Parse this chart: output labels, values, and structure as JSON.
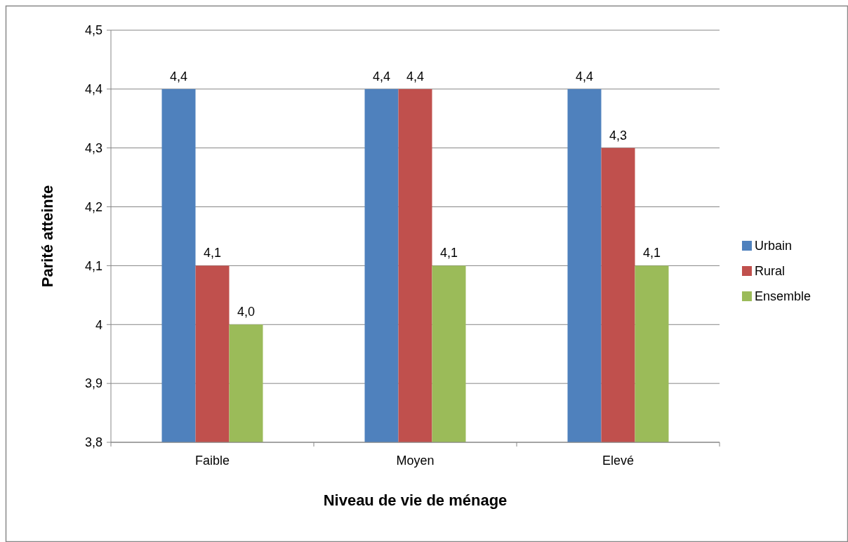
{
  "chart_data": {
    "type": "bar",
    "xlabel": "Niveau de vie de ménage",
    "ylabel": "Parité atteinte",
    "categories": [
      "Faible",
      "Moyen",
      "Elevé"
    ],
    "series": [
      {
        "name": "Urbain",
        "color": "#4f81bd",
        "values": [
          4.4,
          4.4,
          4.4
        ],
        "value_labels": [
          "4,4",
          "4,4",
          "4,4"
        ]
      },
      {
        "name": "Rural",
        "color": "#c0504d",
        "values": [
          4.1,
          4.4,
          4.3
        ],
        "value_labels": [
          "4,1",
          "4,4",
          "4,3"
        ]
      },
      {
        "name": "Ensemble",
        "color": "#9bbb59",
        "values": [
          4.0,
          4.1,
          4.1
        ],
        "value_labels": [
          "4,0",
          "4,1",
          "4,1"
        ]
      }
    ],
    "ylim": [
      3.8,
      4.5
    ],
    "yticks": [
      {
        "value": 3.8,
        "label": "3,8"
      },
      {
        "value": 3.9,
        "label": "3,9"
      },
      {
        "value": 4,
        "label": "4"
      },
      {
        "value": 4.1,
        "label": "4,1"
      },
      {
        "value": 4.2,
        "label": "4,2"
      },
      {
        "value": 4.3,
        "label": "4,3"
      },
      {
        "value": 4.4,
        "label": "4,4"
      },
      {
        "value": 4.5,
        "label": "4,5"
      }
    ],
    "grid": "y",
    "legend": "right"
  }
}
